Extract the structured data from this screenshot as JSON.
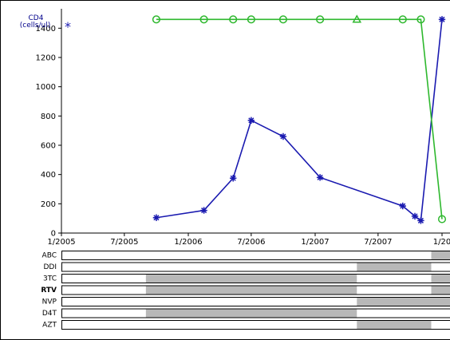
{
  "chart_data": {
    "type": "line",
    "ylabel_line1": "CD4",
    "ylabel_line2": "(cells/ul)",
    "ylabel_marker": "*",
    "xlim": [
      "2005-01",
      "2008-01"
    ],
    "ylim": [
      0,
      1500
    ],
    "y_ticks": [
      0,
      200,
      400,
      600,
      800,
      1000,
      1200,
      1400
    ],
    "x_ticks": [
      "2005-01",
      "2005-07",
      "2006-01",
      "2006-07",
      "2007-01",
      "2007-07",
      "2008-01"
    ],
    "x_tick_labels": [
      "1/2005",
      "7/2005",
      "1/2006",
      "7/2006",
      "1/2007",
      "7/2007",
      "1/20"
    ],
    "series": [
      {
        "color": "#1a1ab0",
        "marker": "asterisk",
        "points": [
          {
            "x": "2005-10-01",
            "y": 105
          },
          {
            "x": "2006-02-15",
            "y": 155
          },
          {
            "x": "2006-05-10",
            "y": 375
          },
          {
            "x": "2006-07-01",
            "y": 770
          },
          {
            "x": "2006-10-01",
            "y": 660
          },
          {
            "x": "2007-01-15",
            "y": 380
          },
          {
            "x": "2007-09-10",
            "y": 185
          },
          {
            "x": "2007-10-15",
            "y": 115
          },
          {
            "x": "2007-11-01",
            "y": 85
          },
          {
            "x": "2008-01-01",
            "y": 1460
          }
        ]
      },
      {
        "color": "#2eb82e",
        "marker": "circle",
        "points": [
          {
            "x": "2005-10-01",
            "y": 1460,
            "marker": "circle"
          },
          {
            "x": "2006-02-15",
            "y": 1460,
            "marker": "circle"
          },
          {
            "x": "2006-05-10",
            "y": 1460,
            "marker": "circle"
          },
          {
            "x": "2006-07-01",
            "y": 1460,
            "marker": "circle"
          },
          {
            "x": "2006-10-01",
            "y": 1460,
            "marker": "circle"
          },
          {
            "x": "2007-01-15",
            "y": 1460,
            "marker": "circle"
          },
          {
            "x": "2007-05-01",
            "y": 1460,
            "marker": "triangle"
          },
          {
            "x": "2007-09-10",
            "y": 1460,
            "marker": "circle"
          },
          {
            "x": "2007-11-01",
            "y": 1460,
            "marker": "circle"
          },
          {
            "x": "2008-01-01",
            "y": 95,
            "marker": "circle"
          }
        ]
      }
    ],
    "drug_timeline": [
      {
        "label": "ABC",
        "bold": false,
        "segments": [
          [
            "2007-12-01",
            "2008-02-01"
          ]
        ]
      },
      {
        "label": "DDI",
        "bold": false,
        "segments": [
          [
            "2007-05-01",
            "2007-12-01"
          ]
        ]
      },
      {
        "label": "3TC",
        "bold": false,
        "segments": [
          [
            "2005-09-01",
            "2007-05-01"
          ],
          [
            "2007-12-01",
            "2008-02-01"
          ]
        ]
      },
      {
        "label": "RTV",
        "bold": true,
        "segments": [
          [
            "2005-09-01",
            "2007-05-01"
          ],
          [
            "2007-12-01",
            "2008-02-01"
          ]
        ]
      },
      {
        "label": "NVP",
        "bold": false,
        "segments": [
          [
            "2007-05-01",
            "2008-02-01"
          ]
        ]
      },
      {
        "label": "D4T",
        "bold": false,
        "segments": [
          [
            "2005-09-01",
            "2007-05-01"
          ]
        ]
      },
      {
        "label": "AZT",
        "bold": false,
        "segments": [
          [
            "2007-05-01",
            "2007-12-01"
          ]
        ]
      }
    ]
  }
}
